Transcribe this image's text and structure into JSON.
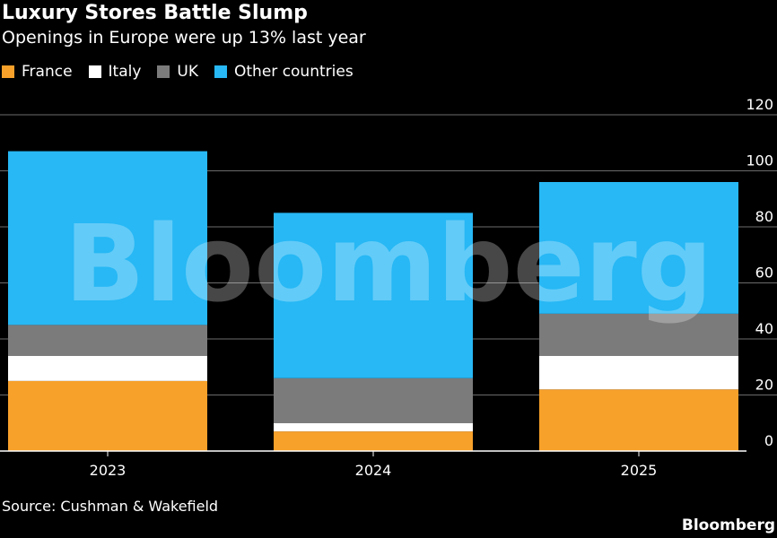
{
  "header": {
    "title": "Luxury Stores Battle Slump",
    "subtitle": "Openings in Europe were up 13% last year"
  },
  "legend": [
    {
      "label": "France",
      "color": "#f7a02a"
    },
    {
      "label": "Italy",
      "color": "#ffffff"
    },
    {
      "label": "UK",
      "color": "#7b7b7b"
    },
    {
      "label": "Other countries",
      "color": "#27b8f5"
    }
  ],
  "watermark": "Bloomberg",
  "footer": {
    "source": "Source: Cushman & Wakefield",
    "brand": "Bloomberg"
  },
  "chart_data": {
    "type": "bar",
    "stacked": true,
    "categories": [
      "2023",
      "2024",
      "2025"
    ],
    "series": [
      {
        "name": "France",
        "color": "#f7a02a",
        "values": [
          25,
          7,
          22
        ]
      },
      {
        "name": "Italy",
        "color": "#ffffff",
        "values": [
          9,
          3,
          12
        ]
      },
      {
        "name": "UK",
        "color": "#7b7b7b",
        "values": [
          11,
          16,
          15
        ]
      },
      {
        "name": "Other countries",
        "color": "#27b8f5",
        "values": [
          62,
          59,
          47
        ]
      }
    ],
    "ylim": [
      0,
      120
    ],
    "yticks": [
      0,
      20,
      40,
      60,
      80,
      100,
      120
    ],
    "grid": true,
    "legend_position": "top-left",
    "y_axis_side": "right"
  }
}
